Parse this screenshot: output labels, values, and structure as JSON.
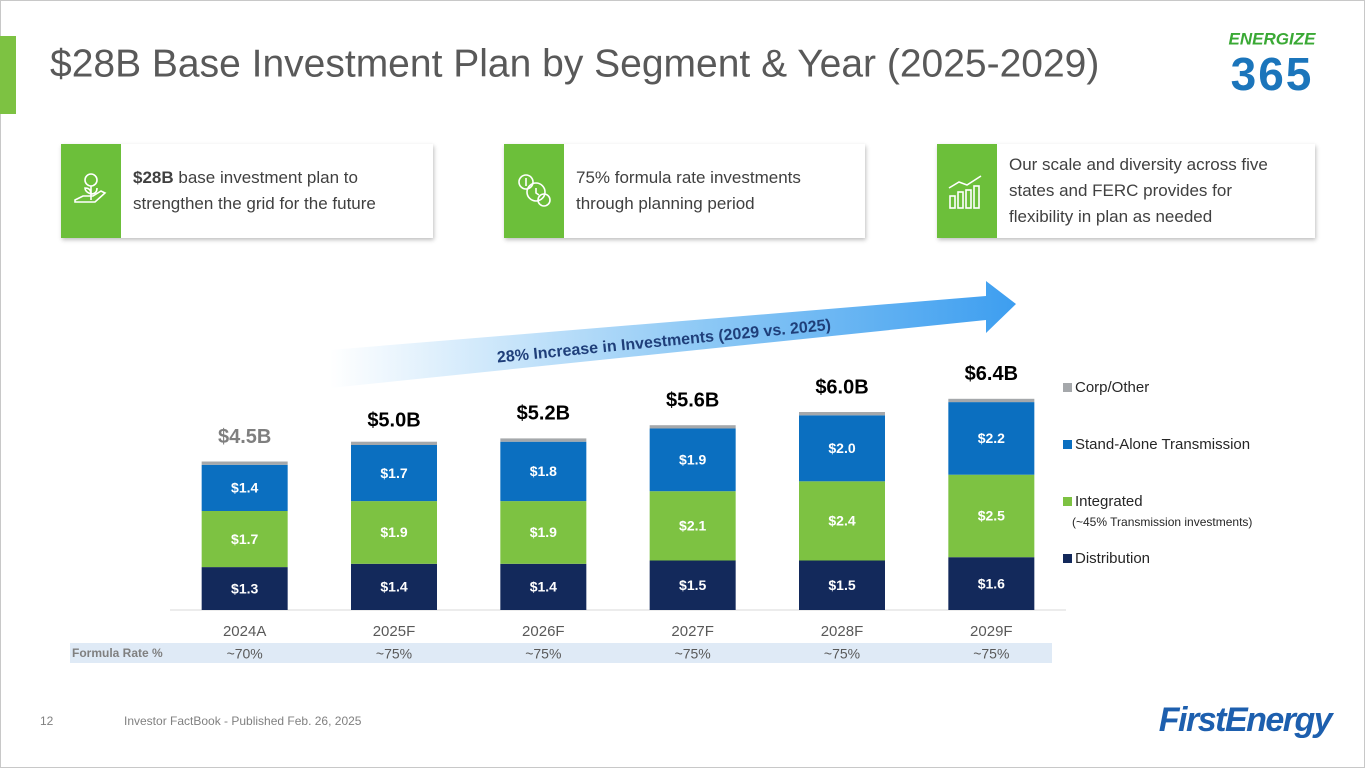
{
  "header": {
    "title": "$28B Base Investment Plan by Segment & Year (2025-2029)",
    "logo_top": "ENERGIZE",
    "logo_bottom": "365"
  },
  "callouts": [
    {
      "bold": "$28B",
      "lines": [
        "base investment plan to",
        "strengthen the grid for the future"
      ]
    },
    {
      "bold": "",
      "lines": [
        "75% formula rate investments",
        "through planning period"
      ]
    },
    {
      "bold": "",
      "lines": [
        "Our scale and diversity across five",
        "states and FERC provides for",
        "flexibility in plan as needed"
      ]
    }
  ],
  "chart_data": {
    "type": "bar",
    "stacked": true,
    "annotation": "28% Increase in Investments (2029 vs. 2025)",
    "categories": [
      "2024A",
      "2025F",
      "2026F",
      "2027F",
      "2028F",
      "2029F"
    ],
    "ylim": [
      0,
      7
    ],
    "series": [
      {
        "name": "Distribution",
        "color": "#13295b",
        "values": [
          1.3,
          1.4,
          1.4,
          1.5,
          1.5,
          1.6
        ],
        "value_labels": [
          "$1.3",
          "$1.4",
          "$1.4",
          "$1.5",
          "$1.5",
          "$1.6"
        ]
      },
      {
        "name": "Integrated",
        "note": "(~45% Transmission investments)",
        "color": "#7dc242",
        "values": [
          1.7,
          1.9,
          1.9,
          2.1,
          2.4,
          2.5
        ],
        "value_labels": [
          "$1.7",
          "$1.9",
          "$1.9",
          "$2.1",
          "$2.4",
          "$2.5"
        ]
      },
      {
        "name": "Stand-Alone Transmission",
        "color": "#0b6fc0",
        "values": [
          1.4,
          1.7,
          1.8,
          1.9,
          2.0,
          2.2
        ],
        "value_labels": [
          "$1.4",
          "$1.7",
          "$1.8",
          "$1.9",
          "$2.0",
          "$2.2"
        ]
      },
      {
        "name": "Corp/Other",
        "color": "#a5a8ab",
        "values": [
          0.1,
          0.1,
          0.1,
          0.1,
          0.1,
          0.1
        ]
      }
    ],
    "totals": {
      "values": [
        4.5,
        5.0,
        5.2,
        5.6,
        6.0,
        6.4
      ],
      "value_labels": [
        "$4.5B",
        "$5.0B",
        "$5.2B",
        "$5.6B",
        "$6.0B",
        "$6.4B"
      ]
    },
    "formula_rate": {
      "label": "Formula Rate %",
      "values": [
        "~70%",
        "~75%",
        "~75%",
        "~75%",
        "~75%",
        "~75%"
      ]
    }
  },
  "footer": {
    "page": "12",
    "source": "Investor FactBook - Published Feb. 26, 2025",
    "brand": "FirstEnergy"
  }
}
